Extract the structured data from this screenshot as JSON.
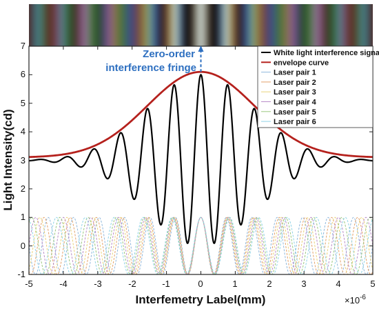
{
  "chart_data": {
    "type": "line",
    "xlabel": "Interfemetry Label(mm)",
    "ylabel": "Light Intensity(cd)",
    "x_exponent_base": "×10",
    "x_exponent_power": "-6",
    "xlim": [
      -5,
      5
    ],
    "ylim": [
      -1,
      7
    ],
    "xticks": [
      "-5",
      "-4",
      "-3",
      "-2",
      "-1",
      "0",
      "1",
      "2",
      "3",
      "4",
      "5"
    ],
    "yticks": [
      "-1",
      "0",
      "1",
      "2",
      "3",
      "4",
      "5",
      "6",
      "7"
    ],
    "grid": false,
    "legend_position": "top-right",
    "annotation": {
      "line1": "Zero-order",
      "line2": "interference fringe",
      "color": "#2d6fc0",
      "x": 0,
      "y_from": 6.1,
      "y_to": 7
    },
    "signal": {
      "baseline": 3.0,
      "peak": 6.0,
      "period": 0.78,
      "envelope_sigma": 1.55
    },
    "envelope": {
      "baseline": 3.1,
      "peak": 6.1,
      "sigma": 1.55
    },
    "laser_pairs": {
      "center": 0.0,
      "amplitude": 1.0,
      "periods": [
        0.74,
        0.76,
        0.78,
        0.8,
        0.82,
        0.84
      ]
    },
    "series": [
      {
        "name": "White light interference signal",
        "color": "#000000",
        "width": 2.2
      },
      {
        "name": "envelope curve",
        "color": "#b5211d",
        "width": 2.8
      },
      {
        "name": "Laser pair 1",
        "color": "#8fb7dc",
        "width": 1
      },
      {
        "name": "Laser pair 2",
        "color": "#e3a16a",
        "width": 1
      },
      {
        "name": "Laser pair 3",
        "color": "#e9d27a",
        "width": 1
      },
      {
        "name": "Laser pair 4",
        "color": "#b98cc8",
        "width": 1
      },
      {
        "name": "Laser pair 5",
        "color": "#9bc77f",
        "width": 1
      },
      {
        "name": "Laser pair 6",
        "color": "#8fd3e6",
        "width": 1
      }
    ]
  }
}
